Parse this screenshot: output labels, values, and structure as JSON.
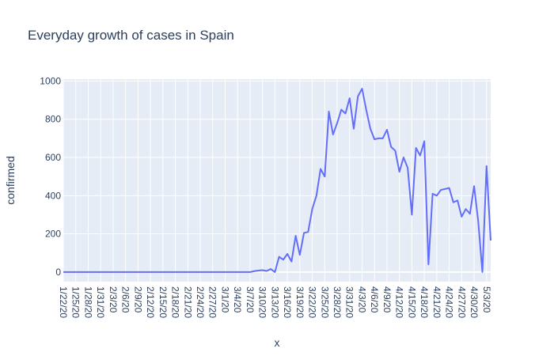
{
  "chart_data": {
    "type": "line",
    "title": "Everyday growth of cases in Spain",
    "xlabel": "x",
    "ylabel": "confirmed",
    "x_start": "1/22/20",
    "x_end": "5/3/20",
    "x_ticks": [
      "1/22/20",
      "1/25/20",
      "1/28/20",
      "1/31/20",
      "2/3/20",
      "2/6/20",
      "2/9/20",
      "2/12/20",
      "2/15/20",
      "2/18/20",
      "2/21/20",
      "2/24/20",
      "2/27/20",
      "3/1/20",
      "3/4/20",
      "3/7/20",
      "3/10/20",
      "3/13/20",
      "3/16/20",
      "3/19/20",
      "3/22/20",
      "3/25/20",
      "3/28/20",
      "3/31/20",
      "4/3/20",
      "4/6/20",
      "4/9/20",
      "4/12/20",
      "4/15/20",
      "4/18/20",
      "4/21/20",
      "4/24/20",
      "4/27/20",
      "4/30/20",
      "5/3/20"
    ],
    "y_ticks": [
      0,
      200,
      400,
      600,
      800,
      1000
    ],
    "ylim": [
      -50,
      1010
    ],
    "grid": true,
    "colors": {
      "line": "#636efa",
      "plot_bg": "#e5ecf6",
      "grid": "#ffffff",
      "text": "#2a3f5f"
    },
    "series": [
      {
        "values": [
          0,
          0,
          0,
          0,
          0,
          0,
          0,
          0,
          0,
          0,
          0,
          0,
          0,
          0,
          0,
          0,
          0,
          0,
          0,
          0,
          0,
          0,
          0,
          0,
          0,
          0,
          0,
          0,
          0,
          0,
          0,
          0,
          0,
          0,
          0,
          0,
          0,
          0,
          0,
          0,
          0,
          0,
          0,
          0,
          0,
          0,
          5,
          8,
          10,
          6,
          16,
          0,
          80,
          65,
          95,
          55,
          190,
          90,
          205,
          210,
          330,
          400,
          540,
          500,
          840,
          720,
          780,
          850,
          830,
          910,
          750,
          920,
          960,
          850,
          750,
          695,
          700,
          700,
          745,
          655,
          635,
          525,
          600,
          545,
          300,
          650,
          610,
          685,
          40,
          410,
          400,
          430,
          435,
          440,
          365,
          375,
          290,
          330,
          305,
          450,
          265,
          0,
          555,
          165
        ]
      }
    ]
  }
}
